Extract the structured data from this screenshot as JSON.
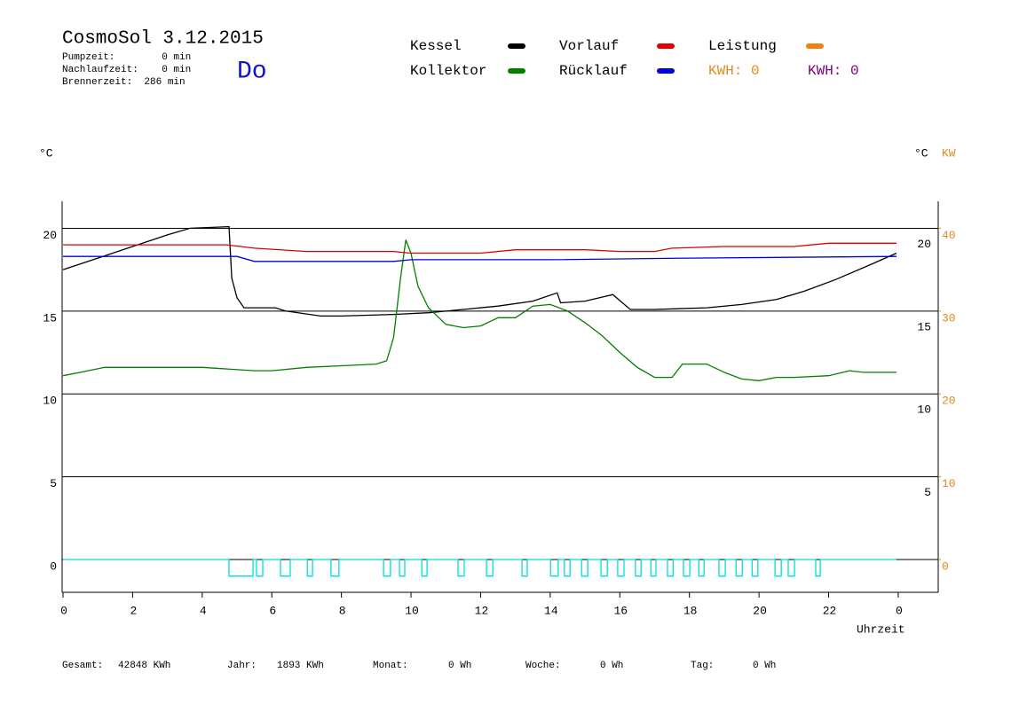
{
  "chart_data": {
    "type": "line",
    "title": "CosmoSol 3.12.2015",
    "info": [
      "Pumpzeit:        0 min",
      "Nachlaufzeit:    0 min",
      "Brennerzeit:  286 min"
    ],
    "day": "Do",
    "y_unit": "°C",
    "y_unit_right": "°C",
    "y2_unit": "KW",
    "x_label": "Uhrzeit",
    "kwh_labels": [
      {
        "text": "KWH: 0",
        "color": "#e08a1e"
      },
      {
        "text": "KWH: 0",
        "color": "#800080"
      }
    ],
    "footer": [
      {
        "label": "Gesamt:",
        "value": "42848 KWh"
      },
      {
        "label": "Jahr:",
        "value": "1893 KWh"
      },
      {
        "label": "Monat:",
        "value": "0 Wh"
      },
      {
        "label": "Woche:",
        "value": "0 Wh"
      },
      {
        "label": "Tag:",
        "value": "0 Wh"
      }
    ],
    "xlim": [
      0,
      25.15
    ],
    "xticks": [
      0,
      2,
      4,
      6,
      8,
      10,
      12,
      14,
      16,
      18,
      20,
      22,
      {
        "value": 24,
        "label": "0"
      }
    ],
    "ylim": [
      -1.98,
      21.63
    ],
    "yticks": [
      0,
      5,
      10,
      15,
      20
    ],
    "yticks_right": [
      5,
      10,
      15,
      20
    ],
    "y2lim": [
      -3.96,
      43.26
    ],
    "y2ticks": [
      0,
      10,
      20,
      30,
      40
    ],
    "grid": true,
    "series": [
      {
        "name": "Kessel",
        "color": "#000000",
        "x": [
          0,
          1,
          2,
          3,
          3.65,
          4.77,
          4.85,
          5.0,
          5.2,
          6.1,
          6.4,
          7.4,
          8,
          9.5,
          10.5,
          11.5,
          12.5,
          13.5,
          14.2,
          14.3,
          15.0,
          15.8,
          16.3,
          17,
          18.5,
          19.5,
          20.5,
          21.3,
          22.2,
          23.2,
          23.95
        ],
        "values": [
          17.5,
          18.2,
          18.9,
          19.6,
          20.0,
          20.1,
          17.0,
          15.8,
          15.2,
          15.2,
          15.0,
          14.7,
          14.7,
          14.8,
          14.9,
          15.1,
          15.3,
          15.6,
          16.1,
          15.5,
          15.6,
          16.0,
          15.1,
          15.1,
          15.2,
          15.4,
          15.7,
          16.2,
          16.9,
          17.8,
          18.5
        ]
      },
      {
        "name": "Kollektor",
        "color": "#008000",
        "x": [
          0,
          0.5,
          1.2,
          2,
          4,
          5.5,
          6,
          7,
          8,
          9,
          9.3,
          9.5,
          9.7,
          9.85,
          10,
          10.2,
          10.5,
          11,
          11.5,
          12,
          12.5,
          13,
          13.5,
          14,
          14.5,
          15,
          15.5,
          16,
          16.5,
          17,
          17.5,
          17.8,
          18.5,
          19,
          19.5,
          20,
          20.5,
          21,
          22,
          22.6,
          23,
          23.95
        ],
        "values": [
          11.1,
          11.3,
          11.6,
          11.6,
          11.6,
          11.4,
          11.4,
          11.6,
          11.7,
          11.8,
          12.0,
          13.4,
          17.0,
          19.3,
          18.5,
          16.5,
          15.2,
          14.2,
          14.0,
          14.1,
          14.6,
          14.6,
          15.3,
          15.4,
          15.0,
          14.3,
          13.5,
          12.5,
          11.6,
          11.0,
          11.0,
          11.8,
          11.8,
          11.3,
          10.9,
          10.8,
          11.0,
          11.0,
          11.1,
          11.4,
          11.3,
          11.3
        ]
      },
      {
        "name": "Vorlauf",
        "color": "#e00000",
        "x": [
          0,
          4.7,
          5.5,
          7,
          9.5,
          10,
          12,
          13,
          15,
          16,
          17,
          17.5,
          19,
          21,
          22,
          23.95
        ],
        "values": [
          19.0,
          19.0,
          18.8,
          18.6,
          18.6,
          18.5,
          18.5,
          18.7,
          18.7,
          18.6,
          18.6,
          18.8,
          18.9,
          18.9,
          19.1,
          19.1
        ]
      },
      {
        "name": "Rücklauf",
        "color": "#0000e0",
        "x": [
          0,
          5,
          5.5,
          9.5,
          10,
          14,
          18,
          23.95
        ],
        "values": [
          18.3,
          18.3,
          18.0,
          18.0,
          18.1,
          18.1,
          18.2,
          18.3
        ]
      },
      {
        "name": "Leistung",
        "color": "#f08010",
        "axis": "y2",
        "x": [],
        "values": []
      },
      {
        "color": "#00dede",
        "x": [
          0,
          4.77,
          4.77,
          5.46,
          5.46,
          5.56,
          5.56,
          5.74,
          5.74,
          6.25,
          6.25,
          6.53,
          6.53,
          7.02,
          7.02,
          7.17,
          7.17,
          7.7,
          7.7,
          7.93,
          7.93,
          9.21,
          9.21,
          9.41,
          9.41,
          9.67,
          9.67,
          9.82,
          9.82,
          10.31,
          10.31,
          10.46,
          10.46,
          11.35,
          11.35,
          11.53,
          11.53,
          12.17,
          12.17,
          12.35,
          12.35,
          13.19,
          13.19,
          13.34,
          13.34,
          14.01,
          14.01,
          14.23,
          14.23,
          14.41,
          14.41,
          14.57,
          14.57,
          14.9,
          14.9,
          15.08,
          15.08,
          15.46,
          15.46,
          15.64,
          15.64,
          15.94,
          15.94,
          16.12,
          16.12,
          16.45,
          16.45,
          16.61,
          16.61,
          16.89,
          16.89,
          17.04,
          17.04,
          17.37,
          17.37,
          17.53,
          17.53,
          17.83,
          17.83,
          18.01,
          18.01,
          18.27,
          18.27,
          18.42,
          18.42,
          18.85,
          18.85,
          19.03,
          19.03,
          19.34,
          19.34,
          19.52,
          19.52,
          19.8,
          19.8,
          19.97,
          19.97,
          20.46,
          20.46,
          20.64,
          20.64,
          20.84,
          20.84,
          21.02,
          21.02,
          21.63,
          21.63,
          21.76,
          21.76,
          23.95
        ],
        "values": [
          0,
          0,
          -1,
          -1,
          0,
          0,
          -1,
          -1,
          0,
          0,
          -1,
          -1,
          0,
          0,
          -1,
          -1,
          0,
          0,
          -1,
          -1,
          0,
          0,
          -1,
          -1,
          0,
          0,
          -1,
          -1,
          0,
          0,
          -1,
          -1,
          0,
          0,
          -1,
          -1,
          0,
          0,
          -1,
          -1,
          0,
          0,
          -1,
          -1,
          0,
          0,
          -1,
          -1,
          0,
          0,
          -1,
          -1,
          0,
          0,
          -1,
          -1,
          0,
          0,
          -1,
          -1,
          0,
          0,
          -1,
          -1,
          0,
          0,
          -1,
          -1,
          0,
          0,
          -1,
          -1,
          0,
          0,
          -1,
          -1,
          0,
          0,
          -1,
          -1,
          0,
          0,
          -1,
          -1,
          0,
          0,
          -1,
          -1,
          0,
          0,
          -1,
          -1,
          0,
          0,
          -1,
          -1,
          0,
          0,
          -1,
          -1,
          0,
          0,
          -1,
          -1,
          0,
          0,
          -1,
          -1,
          0,
          0
        ]
      }
    ]
  }
}
